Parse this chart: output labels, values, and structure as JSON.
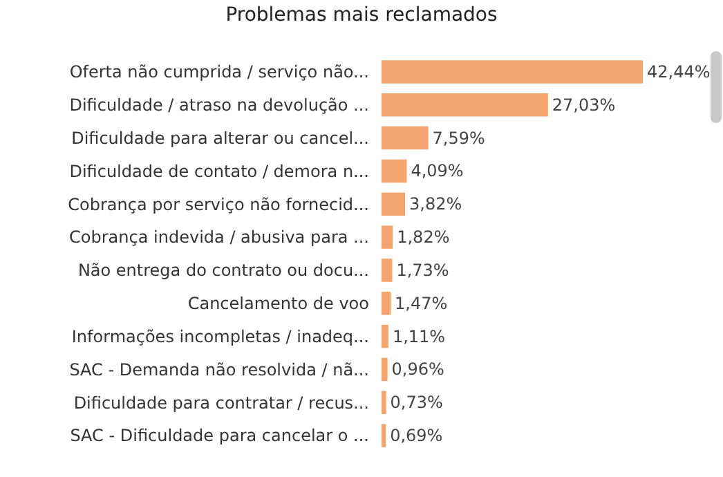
{
  "chart_data": {
    "type": "bar",
    "orientation": "horizontal",
    "title": "Problemas mais reclamados",
    "categories": [
      "Oferta não cumprida / serviço não...",
      "Dificuldade / atraso na devolução ...",
      "Dificuldade para alterar ou cancel...",
      "Dificuldade de contato / demora n...",
      "Cobrança por serviço não fornecid...",
      "Cobrança indevida / abusiva para ...",
      "Não entrega do contrato ou docu...",
      "Cancelamento de voo",
      "Informações incompletas / inadeq...",
      "SAC - Demanda não resolvida / nã...",
      "Dificuldade para contratar / recus...",
      "SAC - Dificuldade para cancelar o ..."
    ],
    "values": [
      42.44,
      27.03,
      7.59,
      4.09,
      3.82,
      1.82,
      1.73,
      1.47,
      1.11,
      0.96,
      0.73,
      0.69
    ],
    "value_labels": [
      "42,44%",
      "27,03%",
      "7,59%",
      "4,09%",
      "3,82%",
      "1,82%",
      "1,73%",
      "1,47%",
      "1,11%",
      "0,96%",
      "0,73%",
      "0,69%"
    ],
    "color": "#f4a46e"
  }
}
